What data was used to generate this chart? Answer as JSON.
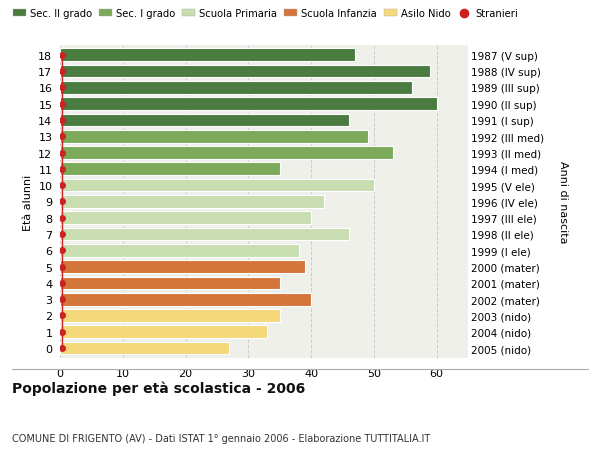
{
  "ages": [
    18,
    17,
    16,
    15,
    14,
    13,
    12,
    11,
    10,
    9,
    8,
    7,
    6,
    5,
    4,
    3,
    2,
    1,
    0
  ],
  "years": [
    "1987 (V sup)",
    "1988 (IV sup)",
    "1989 (III sup)",
    "1990 (II sup)",
    "1991 (I sup)",
    "1992 (III med)",
    "1993 (II med)",
    "1994 (I med)",
    "1995 (V ele)",
    "1996 (IV ele)",
    "1997 (III ele)",
    "1998 (II ele)",
    "1999 (I ele)",
    "2000 (mater)",
    "2001 (mater)",
    "2002 (mater)",
    "2003 (nido)",
    "2004 (nido)",
    "2005 (nido)"
  ],
  "values": [
    47,
    59,
    56,
    60,
    46,
    49,
    53,
    35,
    50,
    42,
    40,
    46,
    38,
    39,
    35,
    40,
    35,
    33,
    27
  ],
  "bar_colors": [
    "#4a7c3f",
    "#4a7c3f",
    "#4a7c3f",
    "#4a7c3f",
    "#4a7c3f",
    "#7aaa5a",
    "#7aaa5a",
    "#7aaa5a",
    "#c8ddb0",
    "#c8ddb0",
    "#c8ddb0",
    "#c8ddb0",
    "#c8ddb0",
    "#d4763b",
    "#d4763b",
    "#d4763b",
    "#f5d87a",
    "#f5d87a",
    "#f5d87a"
  ],
  "stranieri_color": "#cc2222",
  "legend_labels": [
    "Sec. II grado",
    "Sec. I grado",
    "Scuola Primaria",
    "Scuola Infanzia",
    "Asilo Nido",
    "Stranieri"
  ],
  "legend_colors": [
    "#4a7c3f",
    "#7aaa5a",
    "#c8ddb0",
    "#d4763b",
    "#f5d87a",
    "#cc2222"
  ],
  "title": "Popolazione per età scolastica - 2006",
  "subtitle": "COMUNE DI FRIGENTO (AV) - Dati ISTAT 1° gennaio 2006 - Elaborazione TUTTITALIA.IT",
  "ylabel_left": "Età alunni",
  "ylabel_right": "Anni di nascita",
  "xlim": [
    0,
    65
  ],
  "xticks": [
    0,
    10,
    20,
    30,
    40,
    50,
    60
  ],
  "bg_color": "#ffffff",
  "plot_bg_color": "#f0f0eb",
  "grid_color": "#cccccc",
  "bar_height": 0.78
}
